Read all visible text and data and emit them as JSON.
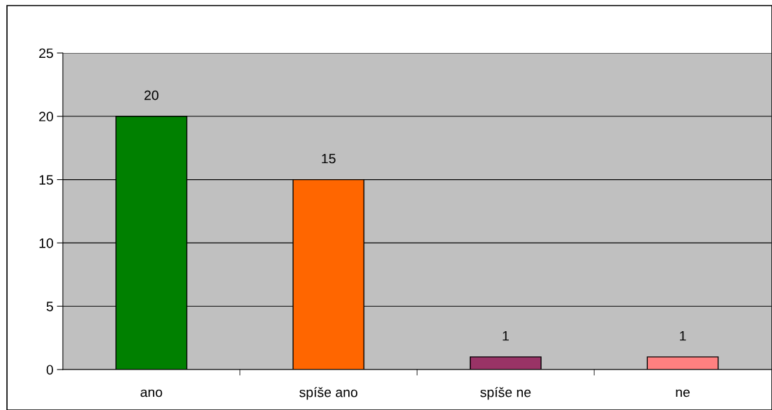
{
  "chart_data": {
    "type": "bar",
    "categories": [
      "ano",
      "spíše ano",
      "spíše ne",
      "ne"
    ],
    "values": [
      20,
      15,
      1,
      1
    ],
    "colors": [
      "#008000",
      "#ff6600",
      "#993366",
      "#ff8080"
    ],
    "ylim": [
      0,
      25
    ],
    "yticks": [
      0,
      5,
      10,
      15,
      20,
      25
    ],
    "grid": "y",
    "data_labels": true,
    "legend": false
  }
}
